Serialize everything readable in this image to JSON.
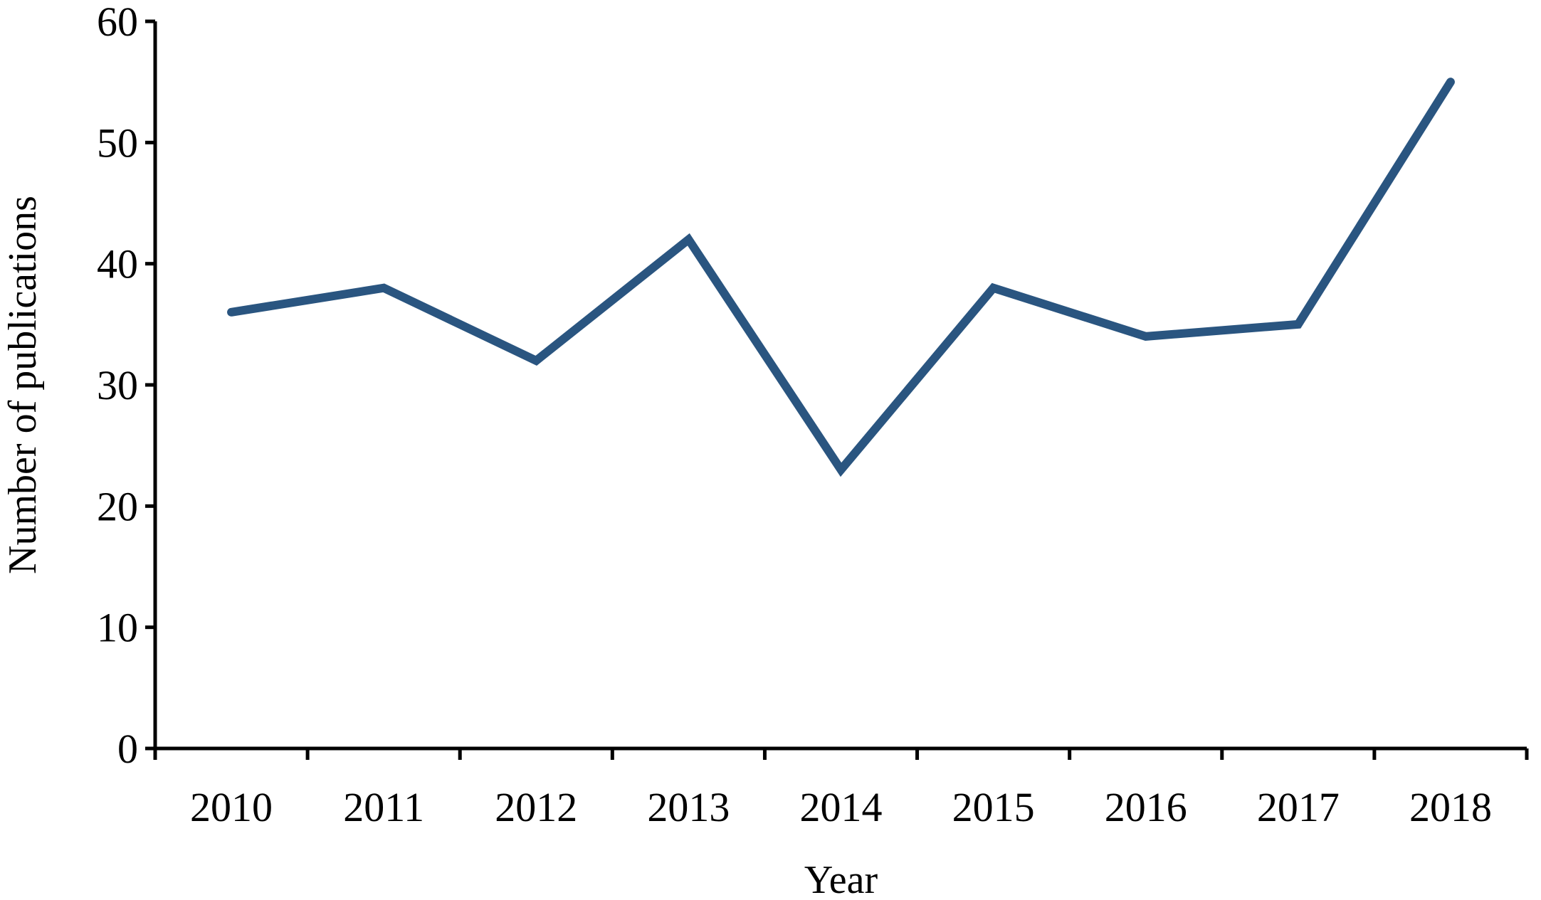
{
  "chart_data": {
    "type": "line",
    "title": "",
    "xlabel": "Year",
    "ylabel": "Number of publications",
    "categories": [
      "2010",
      "2011",
      "2012",
      "2013",
      "2014",
      "2015",
      "2016",
      "2017",
      "2018"
    ],
    "series": [
      {
        "values": [
          36,
          38,
          32,
          42,
          23,
          38,
          34,
          35,
          55
        ]
      }
    ],
    "ylim": [
      0,
      60
    ],
    "yticks": [
      0,
      10,
      20,
      30,
      40,
      50,
      60
    ],
    "grid": false,
    "legend": "none",
    "line_color": "#2a5580",
    "axis_color": "#000000"
  }
}
